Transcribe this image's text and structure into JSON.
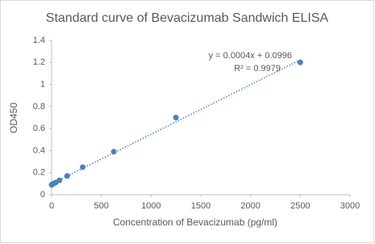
{
  "chart_data": {
    "type": "scatter",
    "title": "Standard curve of Bevacizumab Sandwich ELISA",
    "x_label": "Concentration of Bevacizumab (pg/ml)",
    "y_label": "OD450",
    "x": [
      0,
      9.8,
      19.5,
      39,
      78,
      156,
      312.5,
      625,
      1250,
      2500
    ],
    "values": [
      0.09,
      0.095,
      0.1,
      0.11,
      0.13,
      0.17,
      0.25,
      0.39,
      0.7,
      1.2
    ],
    "color": "#4f7fbf",
    "xlim": [
      0,
      3000
    ],
    "xticks": [
      0,
      500,
      1000,
      1500,
      2000,
      2500,
      3000
    ],
    "ylim": [
      0,
      1.4
    ],
    "yticks": [
      0,
      0.2,
      0.4,
      0.6,
      0.8,
      1,
      1.2,
      1.4
    ],
    "grid": false,
    "trendline": {
      "type": "linear",
      "equation": "y = 0.0004x + 0.0996",
      "r_squared": "R² = 0.9979"
    }
  }
}
